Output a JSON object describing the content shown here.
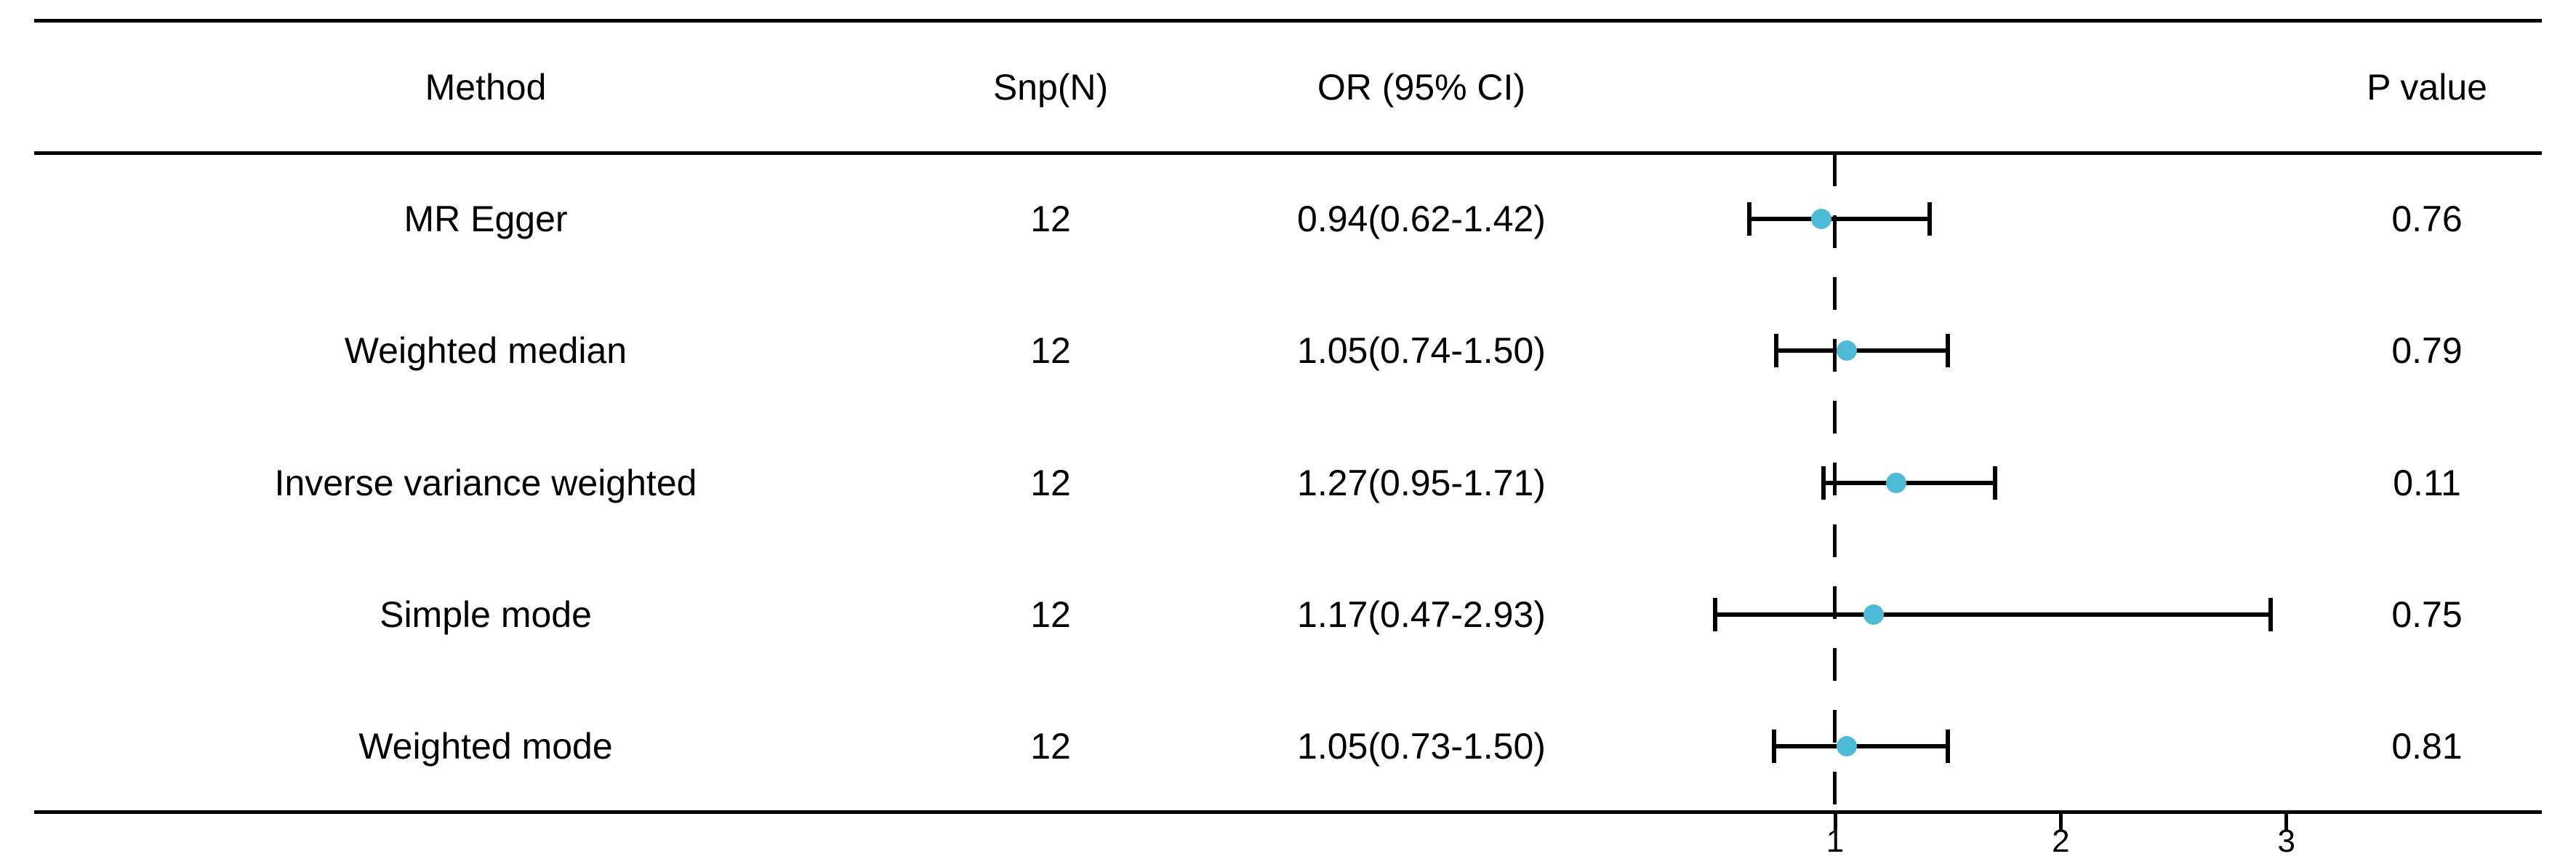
{
  "header": {
    "method": "Method",
    "snp": "Snp(N)",
    "or_ci": "OR (95% CI)",
    "p_value": "P value"
  },
  "axis": {
    "tick_labels": [
      "1",
      "2",
      "3"
    ]
  },
  "colors": {
    "point": "#4DBBD5",
    "line": "#000000"
  },
  "chart_data": {
    "type": "scatter",
    "subtype": "forest-plot",
    "title": "",
    "categories": [
      "MR Egger",
      "Weighted median",
      "Inverse variance weighted",
      "Simple mode",
      "Weighted mode"
    ],
    "snp_n": [
      "12",
      "12",
      "12",
      "12",
      "12"
    ],
    "series": [
      {
        "name": "OR",
        "values": [
          0.94,
          1.05,
          1.27,
          1.17,
          1.05
        ]
      },
      {
        "name": "CI lower",
        "values": [
          0.62,
          0.74,
          0.95,
          0.47,
          0.73
        ]
      },
      {
        "name": "CI upper",
        "values": [
          1.42,
          1.5,
          1.71,
          2.93,
          1.5
        ]
      }
    ],
    "or_ci_labels": [
      "0.94(0.62-1.42)",
      "1.05(0.74-1.50)",
      "1.27(0.95-1.71)",
      "1.17(0.47-2.93)",
      "1.05(0.73-1.50)"
    ],
    "p_value_labels": [
      "0.76",
      "0.79",
      "0.11",
      "0.75",
      "0.81"
    ],
    "x_ticks": [
      1,
      2,
      3
    ],
    "reference_line_x": 1,
    "x_axis_scale": "linear",
    "grid": false,
    "legend": false
  }
}
